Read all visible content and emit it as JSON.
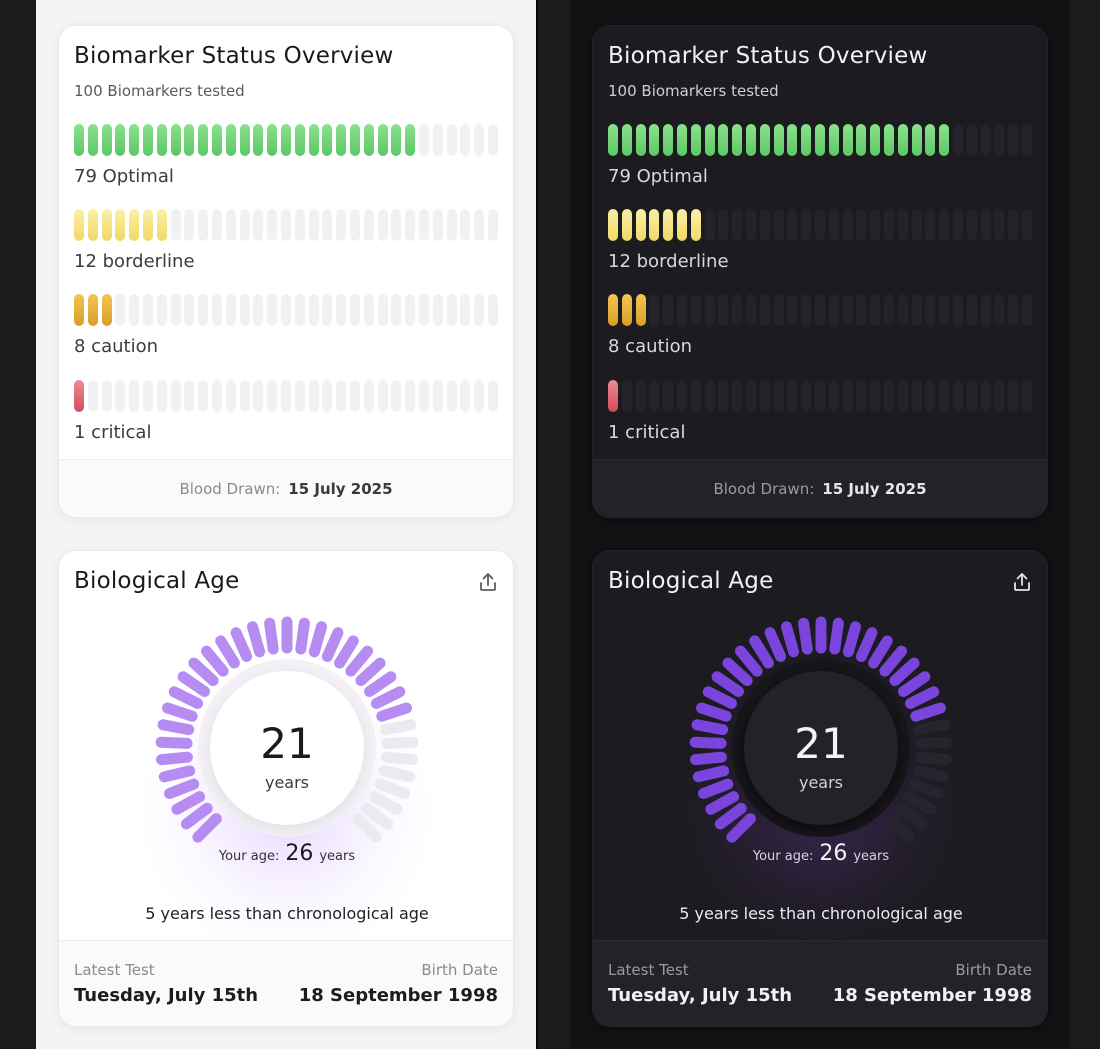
{
  "themes": [
    "light",
    "dark"
  ],
  "biomarker": {
    "title": "Biomarker Status Overview",
    "subtitle": "100 Biomarkers tested",
    "segments_per_row": 31,
    "rows": [
      {
        "count": 25,
        "label": "79 Optimal",
        "color_top": "#8ae28d",
        "color_bottom": "#5cc865"
      },
      {
        "count": 7,
        "label": "12 borderline",
        "color_top": "#fbf0a6",
        "color_bottom": "#f1d867"
      },
      {
        "count": 3,
        "label": "8 caution",
        "color_top": "#f2c552",
        "color_bottom": "#dc9d27"
      },
      {
        "count": 1,
        "label": "1 critical",
        "color_top": "#ef8b95",
        "color_bottom": "#d34b5c"
      }
    ],
    "blood_drawn_label": "Blood Drawn:",
    "blood_drawn_value": "15 July 2025"
  },
  "bio_age": {
    "title": "Biological Age",
    "share_icon": "share-icon",
    "age": "21",
    "unit": "years",
    "your_age_label": "Your age:",
    "your_age_value": "26",
    "your_age_unit": "years",
    "difference_text": "5 years less than chronological age",
    "gauge": {
      "total_ticks": 35,
      "active_ticks": 27,
      "active_color_light": "#b68cf3",
      "active_color_dark": "#7a44dd"
    },
    "latest_test_label": "Latest Test",
    "latest_test_value": "Tuesday, July 15th",
    "birth_date_label": "Birth Date",
    "birth_date_value": "18 September 1998"
  }
}
